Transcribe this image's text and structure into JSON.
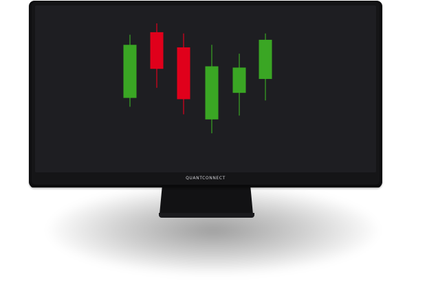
{
  "brand": {
    "label": "QUANTCONNECT"
  },
  "colors": {
    "up": "#3aa624",
    "down": "#e0001b",
    "screen": "#1e1e22",
    "frame": "#0f0f11"
  },
  "chart_data": {
    "type": "candlestick",
    "title": "",
    "xlabel": "",
    "ylabel": "",
    "ylim": [
      0,
      100
    ],
    "candles": [
      {
        "open": 41,
        "close": 83,
        "high": 91,
        "low": 34,
        "direction": "up"
      },
      {
        "open": 93,
        "close": 64,
        "high": 100,
        "low": 49,
        "direction": "down"
      },
      {
        "open": 81,
        "close": 40,
        "high": 92,
        "low": 28,
        "direction": "down"
      },
      {
        "open": 24,
        "close": 66,
        "high": 83,
        "low": 13,
        "direction": "up"
      },
      {
        "open": 45,
        "close": 65,
        "high": 76,
        "low": 27,
        "direction": "up"
      },
      {
        "open": 56,
        "close": 87,
        "high": 92,
        "low": 39,
        "direction": "up"
      }
    ]
  }
}
